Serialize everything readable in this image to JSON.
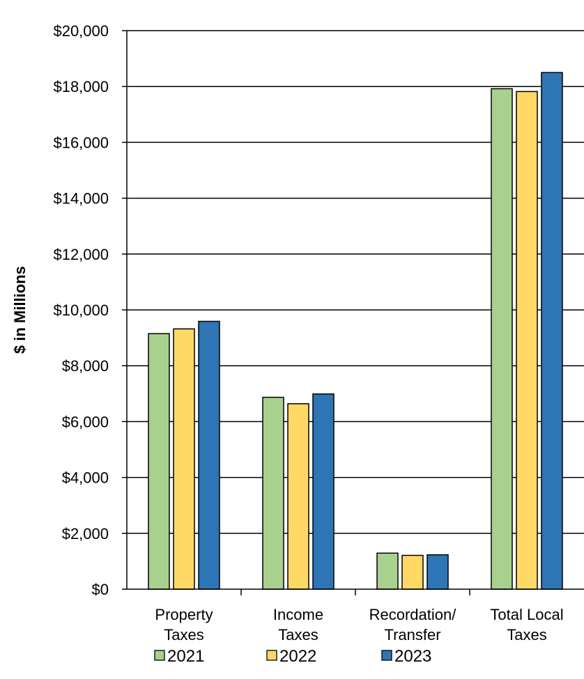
{
  "chart_data": {
    "type": "bar",
    "title": "",
    "xlabel": "",
    "ylabel": "$ in Millions",
    "ylim": [
      0,
      20000
    ],
    "yticks": [
      0,
      2000,
      4000,
      6000,
      8000,
      10000,
      12000,
      14000,
      16000,
      18000,
      20000
    ],
    "ytick_labels": [
      "$0",
      "$2,000",
      "$4,000",
      "$6,000",
      "$8,000",
      "$10,000",
      "$12,000",
      "$14,000",
      "$16,000",
      "$18,000",
      "$20,000"
    ],
    "categories": [
      [
        "Property",
        "Taxes"
      ],
      [
        "Income",
        "Taxes"
      ],
      [
        "Recordation/",
        "Transfer"
      ],
      [
        "Total Local",
        "Taxes"
      ]
    ],
    "series": [
      {
        "name": "2021",
        "color": "#a9d18e",
        "values": [
          9150,
          6870,
          1290,
          17920
        ]
      },
      {
        "name": "2022",
        "color": "#ffd966",
        "values": [
          9320,
          6640,
          1210,
          17820
        ]
      },
      {
        "name": "2023",
        "color": "#2e75b6",
        "values": [
          9590,
          6990,
          1230,
          18500
        ]
      }
    ],
    "grid": "horizontal",
    "legend_position": "bottom"
  }
}
